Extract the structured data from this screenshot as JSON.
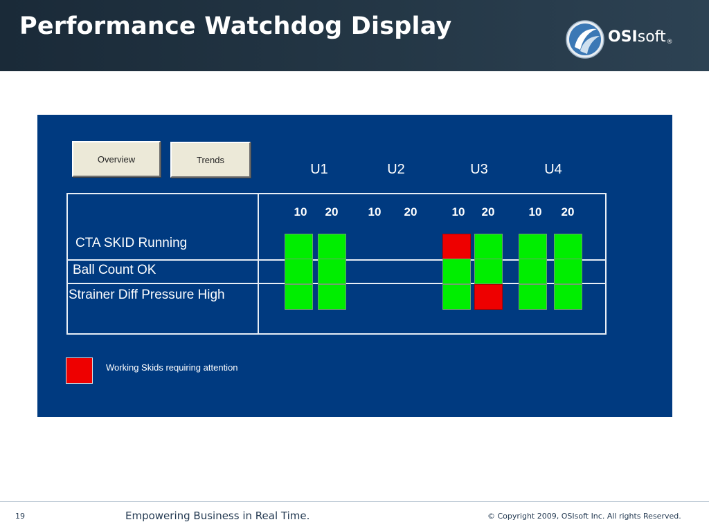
{
  "header": {
    "title": "Performance Watchdog Display",
    "logo": {
      "bold": "OSI",
      "light": "soft",
      "mark": "®",
      "icon": "osisoft-logo-icon"
    }
  },
  "toolbar": {
    "overview_label": "Overview",
    "trends_label": "Trends"
  },
  "units": [
    {
      "label": "U1",
      "subs": [
        "10",
        "20"
      ]
    },
    {
      "label": "U2",
      "subs": [
        "10",
        "20"
      ]
    },
    {
      "label": "U3",
      "subs": [
        "10",
        "20"
      ]
    },
    {
      "label": "U4",
      "subs": [
        "10",
        "20"
      ]
    }
  ],
  "rows": [
    {
      "label": "CTA SKID Running"
    },
    {
      "label": "Ball Count OK"
    },
    {
      "label": "Strainer Diff Pressure High"
    }
  ],
  "status_grid": {
    "colors": {
      "ok": "#00ee00",
      "alert": "#ee0000"
    },
    "cells": [
      [
        "ok",
        "ok",
        null,
        null,
        "alert",
        "ok",
        "ok",
        "ok"
      ],
      [
        "ok",
        "ok",
        null,
        null,
        "ok",
        "ok",
        "ok",
        "ok"
      ],
      [
        "ok",
        "ok",
        null,
        null,
        "ok",
        "alert",
        "ok",
        "ok"
      ]
    ]
  },
  "legend": {
    "label": "Working Skids requiring attention",
    "color": "#ee0000"
  },
  "footer": {
    "page_number": "19",
    "tagline": "Empowering Business in Real Time.",
    "copyright": "© Copyright 2009, OSIsoft Inc.  All rights Reserved."
  },
  "colors": {
    "header_bg": "#243746",
    "display_bg": "#003a80",
    "footer_text": "#243a52"
  }
}
